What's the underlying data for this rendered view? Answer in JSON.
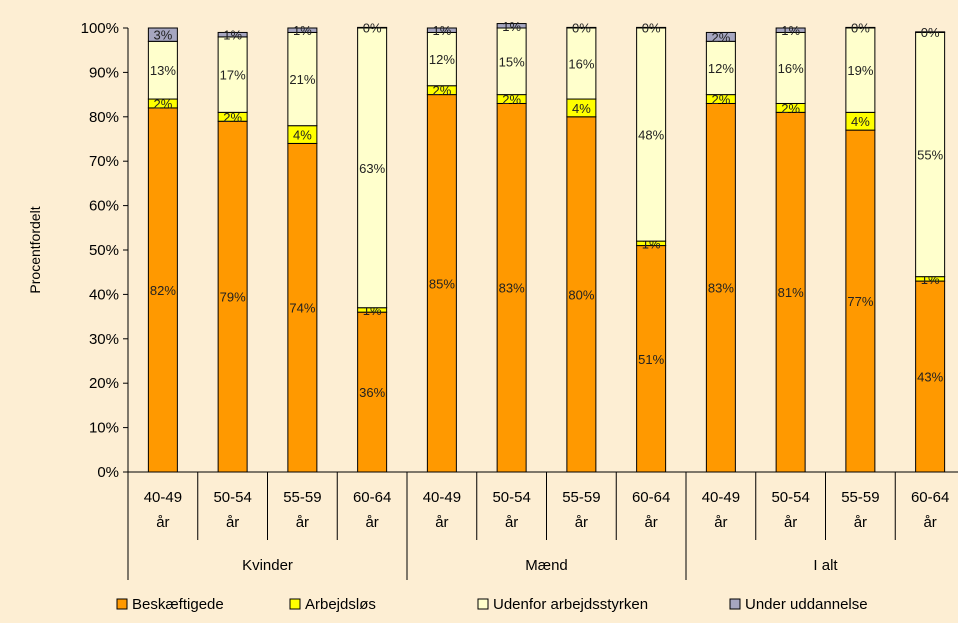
{
  "chart_data": {
    "type": "bar",
    "stacked": true,
    "percent": true,
    "ylabel": "Procentfordelt",
    "ylim": [
      0,
      100
    ],
    "yticks": [
      "0%",
      "10%",
      "20%",
      "30%",
      "40%",
      "50%",
      "60%",
      "70%",
      "80%",
      "90%",
      "100%"
    ],
    "groups": [
      "Kvinder",
      "Mænd",
      "I alt"
    ],
    "categories": [
      "40-49 år",
      "50-54 år",
      "55-59 år",
      "60-64 år"
    ],
    "x": [
      "Kvinder 40-49 år",
      "Kvinder 50-54 år",
      "Kvinder 55-59 år",
      "Kvinder 60-64 år",
      "Mænd 40-49 år",
      "Mænd 50-54 år",
      "Mænd 55-59 år",
      "Mænd 60-64 år",
      "I alt 40-49 år",
      "I alt 50-54 år",
      "I alt 55-59 år",
      "I alt 60-64 år"
    ],
    "series": [
      {
        "name": "Beskæftigede",
        "color": "#ff9900",
        "values": [
          82,
          79,
          74,
          36,
          85,
          83,
          80,
          51,
          83,
          81,
          77,
          43
        ],
        "labels": [
          "82%",
          "79%",
          "74%",
          "36%",
          "85%",
          "83%",
          "80%",
          "51%",
          "83%",
          "81%",
          "77%",
          "43%"
        ]
      },
      {
        "name": "Arbejdsløs",
        "color": "#ffff00",
        "values": [
          2,
          2,
          4,
          1,
          2,
          2,
          4,
          1,
          2,
          2,
          4,
          1
        ],
        "labels": [
          "2%",
          "2%",
          "4%",
          "1%",
          "2%",
          "2%",
          "4%",
          "1%",
          "2%",
          "2%",
          "4%",
          "1%"
        ]
      },
      {
        "name": "Udenfor arbejdsstyrken",
        "color": "#ffffcc",
        "values": [
          13,
          17,
          21,
          63,
          12,
          15,
          16,
          48,
          12,
          16,
          19,
          55
        ],
        "labels": [
          "13%",
          "17%",
          "21%",
          "63%",
          "12%",
          "15%",
          "16%",
          "48%",
          "12%",
          "16%",
          "19%",
          "55%"
        ]
      },
      {
        "name": "Under uddannelse",
        "color": "#a6a6c0",
        "values": [
          3,
          1,
          1,
          0,
          1,
          1,
          0,
          0,
          2,
          1,
          0,
          0
        ],
        "labels": [
          "3%",
          "1%",
          "1%",
          "0%",
          "1%",
          "1%",
          "0%",
          "0%",
          "2%",
          "1%",
          "0%",
          "0%"
        ]
      }
    ],
    "legend": "bottom",
    "grid": false,
    "background": "#fdeed3"
  }
}
